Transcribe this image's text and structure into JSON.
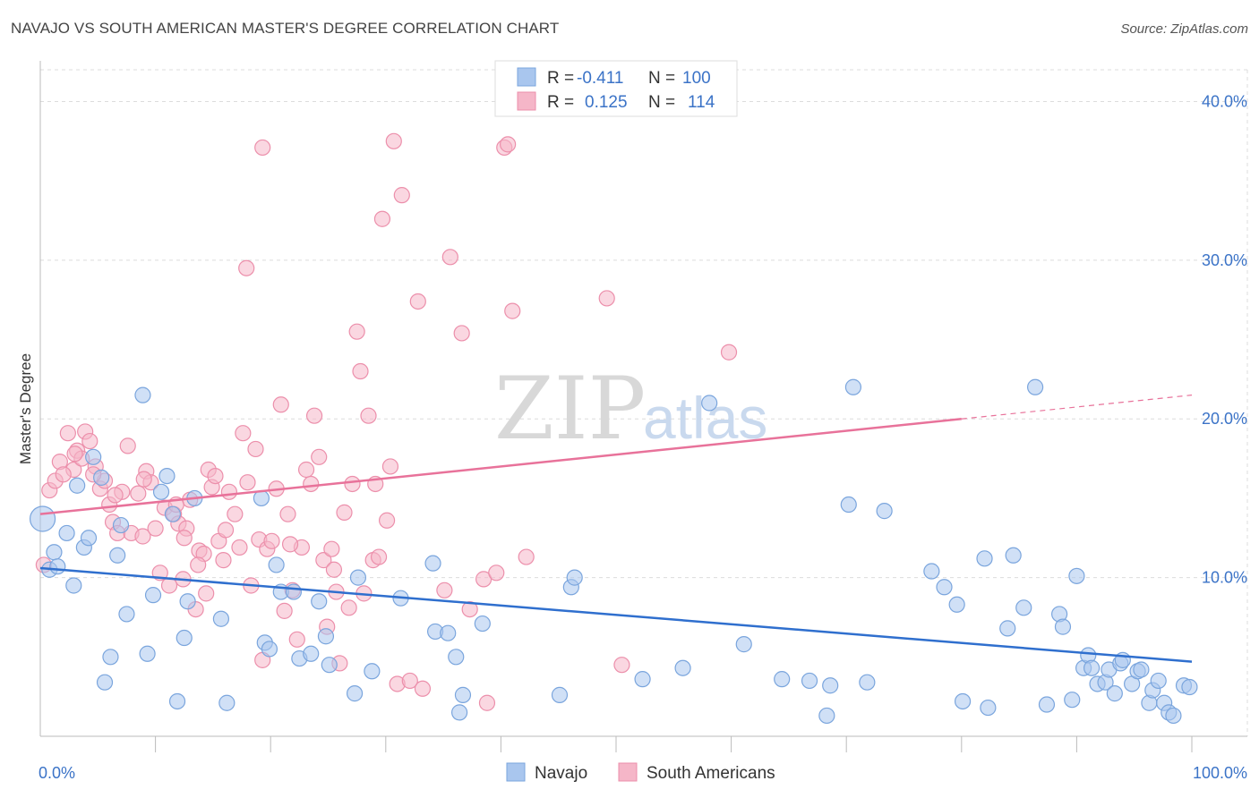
{
  "header": {
    "title": "NAVAJO VS SOUTH AMERICAN MASTER'S DEGREE CORRELATION CHART",
    "source": "Source: ZipAtlas.com"
  },
  "legend_box": {
    "rows": [
      {
        "r_label": "R =",
        "r_value": "-0.411",
        "n_label": "N =",
        "n_value": "100",
        "color": "#a9c6ee"
      },
      {
        "r_label": "R =",
        "r_value": "0.125",
        "n_label": "N =",
        "n_value": "114",
        "color": "#f5b6c8"
      }
    ]
  },
  "watermark": {
    "zip": "ZIP",
    "atlas": "atlas"
  },
  "chart_data": {
    "type": "scatter",
    "title": "NAVAJO VS SOUTH AMERICAN MASTER'S DEGREE CORRELATION CHART",
    "xlabel": "",
    "ylabel": "Master's Degree",
    "xlim": [
      0,
      100
    ],
    "ylim": [
      0,
      42
    ],
    "x_tick_labels": [
      "0.0%",
      "100.0%"
    ],
    "y_ticks": [
      10,
      20,
      30,
      40
    ],
    "y_tick_labels": [
      "10.0%",
      "20.0%",
      "30.0%",
      "40.0%"
    ],
    "grid": true,
    "legend_position": "bottom-center",
    "series": [
      {
        "name": "Navajo",
        "color": "#a9c6ee",
        "stroke": "#7aa5dd",
        "trend_color": "#2f6fce",
        "trend": {
          "x0": 0,
          "y0": 10.6,
          "x1": 100,
          "y1": 4.7
        },
        "points": [
          [
            0.2,
            13.7
          ],
          [
            0.8,
            10.5
          ],
          [
            1.2,
            11.6
          ],
          [
            1.5,
            10.7
          ],
          [
            2.3,
            12.8
          ],
          [
            2.9,
            9.5
          ],
          [
            3.2,
            15.8
          ],
          [
            3.8,
            11.9
          ],
          [
            4.2,
            12.5
          ],
          [
            4.6,
            17.6
          ],
          [
            5.3,
            16.3
          ],
          [
            5.6,
            3.4
          ],
          [
            6.1,
            5.0
          ],
          [
            6.7,
            11.4
          ],
          [
            7.0,
            13.3
          ],
          [
            7.5,
            7.7
          ],
          [
            8.9,
            21.5
          ],
          [
            9.3,
            5.2
          ],
          [
            9.8,
            8.9
          ],
          [
            10.5,
            15.4
          ],
          [
            11.0,
            16.4
          ],
          [
            11.5,
            14.0
          ],
          [
            11.9,
            2.2
          ],
          [
            12.5,
            6.2
          ],
          [
            12.8,
            8.5
          ],
          [
            13.4,
            15.0
          ],
          [
            15.7,
            7.4
          ],
          [
            16.2,
            2.1
          ],
          [
            19.2,
            15.0
          ],
          [
            19.5,
            5.9
          ],
          [
            19.9,
            5.5
          ],
          [
            20.5,
            10.8
          ],
          [
            20.9,
            9.1
          ],
          [
            22.0,
            9.1
          ],
          [
            22.5,
            4.9
          ],
          [
            23.5,
            5.2
          ],
          [
            24.2,
            8.5
          ],
          [
            24.8,
            6.3
          ],
          [
            25.1,
            4.5
          ],
          [
            27.3,
            2.7
          ],
          [
            27.6,
            10.0
          ],
          [
            28.8,
            4.1
          ],
          [
            31.3,
            8.7
          ],
          [
            34.1,
            10.9
          ],
          [
            34.3,
            6.6
          ],
          [
            35.4,
            6.5
          ],
          [
            36.1,
            5.0
          ],
          [
            36.4,
            1.5
          ],
          [
            36.7,
            2.6
          ],
          [
            38.4,
            7.1
          ],
          [
            45.1,
            2.6
          ],
          [
            46.1,
            9.4
          ],
          [
            46.4,
            10.0
          ],
          [
            52.3,
            3.6
          ],
          [
            55.8,
            4.3
          ],
          [
            58.1,
            21.0
          ],
          [
            61.1,
            5.8
          ],
          [
            64.4,
            3.6
          ],
          [
            66.8,
            3.5
          ],
          [
            68.3,
            1.3
          ],
          [
            68.6,
            3.2
          ],
          [
            70.2,
            14.6
          ],
          [
            70.6,
            22.0
          ],
          [
            71.8,
            3.4
          ],
          [
            73.3,
            14.2
          ],
          [
            77.4,
            10.4
          ],
          [
            78.5,
            9.4
          ],
          [
            79.6,
            8.3
          ],
          [
            80.1,
            2.2
          ],
          [
            82.0,
            11.2
          ],
          [
            82.3,
            1.8
          ],
          [
            84.0,
            6.8
          ],
          [
            84.5,
            11.4
          ],
          [
            85.4,
            8.1
          ],
          [
            86.4,
            22.0
          ],
          [
            87.4,
            2.0
          ],
          [
            88.5,
            7.7
          ],
          [
            88.8,
            6.9
          ],
          [
            89.6,
            2.3
          ],
          [
            90.0,
            10.1
          ],
          [
            90.6,
            4.3
          ],
          [
            91.0,
            5.1
          ],
          [
            91.3,
            4.3
          ],
          [
            91.8,
            3.3
          ],
          [
            92.5,
            3.4
          ],
          [
            92.8,
            4.2
          ],
          [
            93.3,
            2.7
          ],
          [
            93.8,
            4.6
          ],
          [
            94.0,
            4.8
          ],
          [
            94.8,
            3.3
          ],
          [
            95.3,
            4.1
          ],
          [
            95.6,
            4.2
          ],
          [
            96.3,
            2.1
          ],
          [
            96.6,
            2.9
          ],
          [
            97.1,
            3.5
          ],
          [
            97.6,
            2.1
          ],
          [
            98.0,
            1.5
          ],
          [
            98.4,
            1.3
          ],
          [
            99.3,
            3.2
          ],
          [
            99.8,
            3.1
          ]
        ]
      },
      {
        "name": "South Americans",
        "color": "#f5b6c8",
        "stroke": "#ec8fab",
        "trend_color": "#e8729a",
        "trend": {
          "x0": 0,
          "y0": 14.0,
          "x1": 80,
          "y1": 20.0
        },
        "trend_dashed": {
          "x0": 80,
          "y0": 20.0,
          "x1": 100,
          "y1": 21.5
        },
        "points": [
          [
            0.3,
            10.8
          ],
          [
            0.8,
            15.5
          ],
          [
            1.3,
            16.1
          ],
          [
            1.7,
            17.3
          ],
          [
            2.4,
            19.1
          ],
          [
            2.9,
            16.8
          ],
          [
            3.2,
            18.0
          ],
          [
            3.6,
            17.5
          ],
          [
            3.9,
            19.2
          ],
          [
            4.3,
            18.6
          ],
          [
            4.8,
            17.0
          ],
          [
            5.2,
            15.6
          ],
          [
            5.6,
            16.1
          ],
          [
            6.0,
            14.6
          ],
          [
            6.3,
            13.5
          ],
          [
            6.7,
            12.8
          ],
          [
            7.1,
            15.4
          ],
          [
            7.6,
            18.3
          ],
          [
            7.9,
            12.8
          ],
          [
            8.5,
            15.3
          ],
          [
            8.9,
            12.6
          ],
          [
            9.2,
            16.7
          ],
          [
            9.6,
            16.0
          ],
          [
            10.0,
            13.1
          ],
          [
            10.4,
            10.3
          ],
          [
            10.8,
            14.4
          ],
          [
            11.2,
            9.5
          ],
          [
            11.6,
            14.0
          ],
          [
            12.0,
            13.4
          ],
          [
            12.4,
            9.9
          ],
          [
            12.7,
            13.1
          ],
          [
            13.0,
            14.9
          ],
          [
            13.5,
            8.0
          ],
          [
            13.8,
            11.7
          ],
          [
            14.2,
            11.5
          ],
          [
            14.6,
            16.8
          ],
          [
            14.9,
            15.7
          ],
          [
            15.2,
            16.4
          ],
          [
            15.5,
            12.3
          ],
          [
            15.9,
            11.1
          ],
          [
            16.4,
            15.4
          ],
          [
            16.9,
            14.0
          ],
          [
            17.3,
            11.9
          ],
          [
            17.6,
            19.1
          ],
          [
            17.9,
            29.5
          ],
          [
            18.3,
            9.5
          ],
          [
            18.7,
            18.1
          ],
          [
            19.0,
            12.4
          ],
          [
            19.3,
            4.8
          ],
          [
            19.3,
            37.1
          ],
          [
            19.7,
            11.8
          ],
          [
            20.1,
            12.3
          ],
          [
            20.5,
            15.6
          ],
          [
            20.9,
            20.9
          ],
          [
            21.2,
            7.9
          ],
          [
            21.5,
            14.0
          ],
          [
            21.9,
            9.2
          ],
          [
            22.3,
            6.1
          ],
          [
            22.7,
            11.9
          ],
          [
            23.1,
            16.8
          ],
          [
            23.5,
            15.9
          ],
          [
            23.8,
            20.2
          ],
          [
            24.2,
            17.6
          ],
          [
            24.6,
            11.1
          ],
          [
            24.9,
            6.9
          ],
          [
            25.3,
            11.8
          ],
          [
            25.7,
            9.1
          ],
          [
            26.0,
            4.6
          ],
          [
            26.4,
            14.1
          ],
          [
            26.8,
            8.1
          ],
          [
            27.1,
            15.9
          ],
          [
            27.5,
            25.5
          ],
          [
            27.8,
            23.0
          ],
          [
            28.1,
            9.0
          ],
          [
            28.5,
            20.2
          ],
          [
            28.9,
            11.1
          ],
          [
            29.1,
            15.9
          ],
          [
            29.4,
            11.3
          ],
          [
            29.7,
            32.6
          ],
          [
            30.1,
            13.6
          ],
          [
            30.4,
            17.0
          ],
          [
            30.7,
            37.5
          ],
          [
            31.0,
            3.3
          ],
          [
            31.4,
            34.1
          ],
          [
            32.1,
            3.5
          ],
          [
            32.8,
            27.4
          ],
          [
            33.2,
            3.0
          ],
          [
            35.1,
            9.2
          ],
          [
            35.6,
            30.2
          ],
          [
            36.6,
            25.4
          ],
          [
            37.3,
            8.0
          ],
          [
            38.5,
            9.9
          ],
          [
            38.8,
            2.1
          ],
          [
            39.6,
            10.3
          ],
          [
            40.3,
            37.1
          ],
          [
            40.6,
            37.3
          ],
          [
            41.0,
            26.8
          ],
          [
            42.2,
            11.3
          ],
          [
            49.2,
            27.6
          ],
          [
            50.5,
            4.5
          ],
          [
            59.8,
            24.2
          ],
          [
            2.0,
            16.5
          ],
          [
            3.0,
            17.8
          ],
          [
            4.6,
            16.5
          ],
          [
            6.5,
            15.2
          ],
          [
            9.0,
            16.2
          ],
          [
            11.8,
            14.6
          ],
          [
            12.5,
            12.5
          ],
          [
            13.7,
            10.8
          ],
          [
            14.4,
            9.0
          ],
          [
            16.1,
            13.0
          ],
          [
            18.0,
            16.0
          ],
          [
            21.7,
            12.1
          ],
          [
            25.5,
            10.5
          ]
        ]
      }
    ]
  },
  "bottom_legend": {
    "items": [
      {
        "label": "Navajo",
        "color": "#a9c6ee"
      },
      {
        "label": "South Americans",
        "color": "#f5b6c8"
      }
    ]
  }
}
